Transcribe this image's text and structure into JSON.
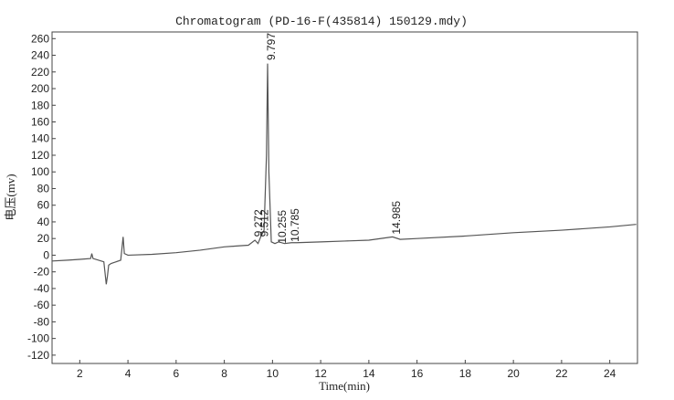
{
  "chart_data": {
    "type": "line",
    "title": "Chromatogram (PD-16-F(435814) 150129.mdy)",
    "x_label": "Time(min)",
    "y_label": "电压(mv)",
    "xlim": [
      0.85,
      25.15
    ],
    "ylim": [
      -130,
      268
    ],
    "xticks": [
      2,
      4,
      6,
      8,
      10,
      12,
      14,
      16,
      18,
      20,
      22,
      24
    ],
    "yticks": [
      -120,
      -100,
      -80,
      -60,
      -40,
      -20,
      0,
      20,
      40,
      60,
      80,
      100,
      120,
      140,
      160,
      180,
      200,
      220,
      240,
      260
    ],
    "grid": false,
    "series": [
      {
        "color": "#555555",
        "x": [
          0.85,
          1.5,
          2.0,
          2.45,
          2.5,
          2.55,
          3.0,
          3.1,
          3.15,
          3.2,
          3.3,
          3.7,
          3.8,
          3.85,
          4.0,
          5.0,
          6.0,
          7.0,
          8.0,
          8.5,
          9.0,
          9.27,
          9.4,
          9.51,
          9.65,
          9.75,
          9.797,
          9.85,
          9.95,
          10.1,
          10.255,
          10.5,
          10.785,
          11,
          12,
          13,
          14,
          14.985,
          15.3,
          16,
          18,
          20,
          22,
          24,
          25.1
        ],
        "values": [
          -7,
          -6,
          -5,
          -4,
          2,
          -4,
          -8,
          -35,
          -25,
          -12,
          -10,
          -6,
          22,
          2,
          0,
          1,
          3,
          6,
          10,
          11,
          12,
          18,
          14,
          22,
          30,
          120,
          230,
          100,
          16,
          14,
          16,
          14,
          15,
          15,
          16,
          17,
          18,
          22,
          19,
          20,
          23,
          27,
          30,
          34,
          37
        ]
      }
    ],
    "annotations": [
      {
        "text": "9.272",
        "x": 9.272,
        "y": 22
      },
      {
        "text": "9.512",
        "x": 9.512,
        "y": 22
      },
      {
        "text": "9.797",
        "x": 9.797,
        "y": 234
      },
      {
        "text": "10.255",
        "x": 10.255,
        "y": 14
      },
      {
        "text": "10.785",
        "x": 10.785,
        "y": 16
      },
      {
        "text": "14.985",
        "x": 14.985,
        "y": 25
      }
    ]
  }
}
